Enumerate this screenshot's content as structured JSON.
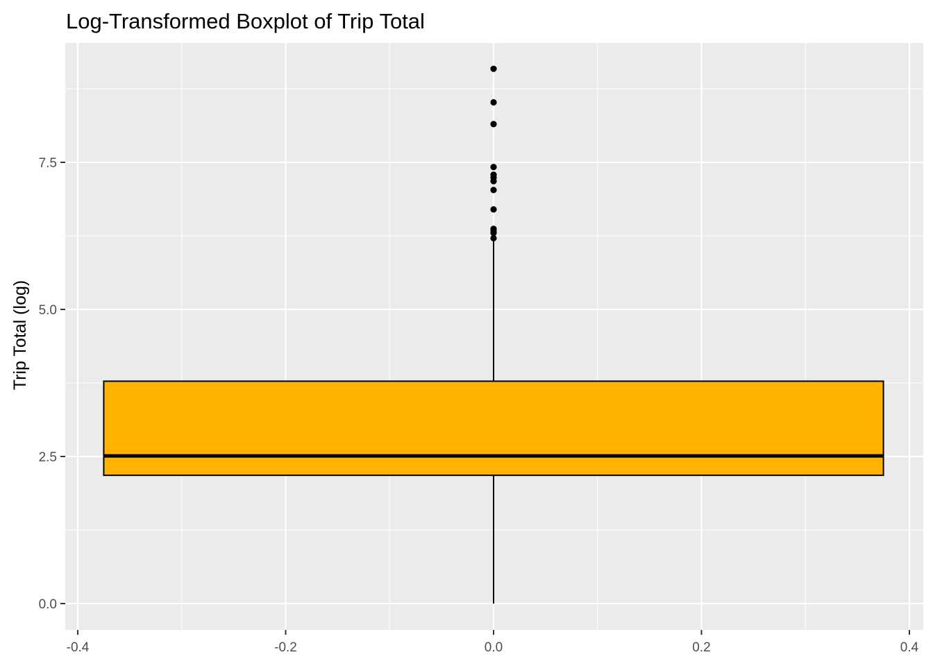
{
  "chart_data": {
    "type": "boxplot",
    "title": "Log-Transformed Boxplot of Trip Total",
    "xlabel": "",
    "ylabel": "Trip Total (log)",
    "xlim": [
      -0.4,
      0.4
    ],
    "ylim": [
      0.0,
      9.1
    ],
    "x_ticks": [
      -0.4,
      -0.2,
      0.0,
      0.2,
      0.4
    ],
    "x_tick_labels": [
      "-0.4",
      "-0.2",
      "0.0",
      "0.2",
      "0.4"
    ],
    "y_ticks": [
      0.0,
      2.5,
      5.0,
      7.5
    ],
    "y_tick_labels": [
      "0.0",
      "2.5",
      "5.0",
      "7.5"
    ],
    "grid": true,
    "box": {
      "x_center": 0.0,
      "x_left": -0.375,
      "x_right": 0.375,
      "whisker_low": 0.0,
      "q1": 2.18,
      "median": 2.51,
      "q3": 3.78,
      "whisker_high": 6.2,
      "fill": "#FFB300",
      "stroke": "#000000"
    },
    "outliers": [
      6.21,
      6.3,
      6.34,
      6.37,
      6.7,
      7.03,
      7.18,
      7.24,
      7.29,
      7.42,
      8.15,
      8.52,
      9.09
    ],
    "panel_background": "#EBEBEB",
    "grid_color": "#FFFFFF"
  }
}
